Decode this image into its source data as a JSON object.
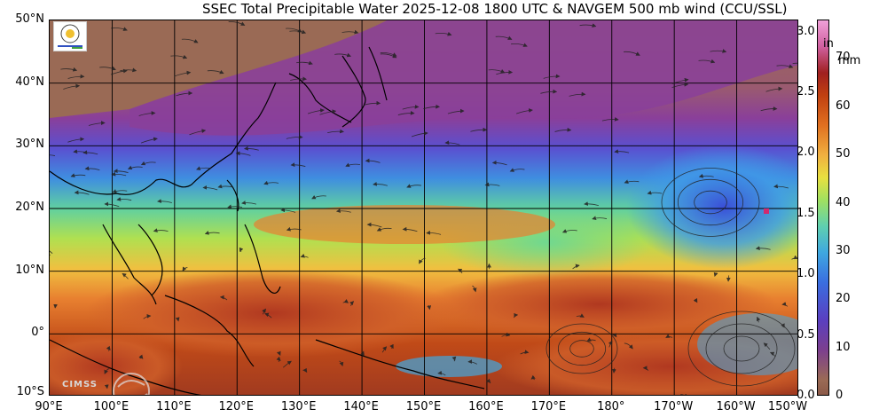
{
  "title": "SSEC Total Precipitable Water  2025-12-08 1800 UTC & NAVGEM 500 mb wind (CCU/SSL)",
  "lat_labels": [
    "50°N",
    "40°N",
    "30°N",
    "20°N",
    "10°N",
    "0°",
    "10°S"
  ],
  "lon_labels": [
    "90°E",
    "100°E",
    "110°E",
    "120°E",
    "130°E",
    "140°E",
    "150°E",
    "160°E",
    "170°E",
    "180°",
    "170°W",
    "160°W",
    "150°W"
  ],
  "colorbar": {
    "unit_in": "in",
    "unit_mm": "mm",
    "in_ticks": [
      "3.0",
      "2.5",
      "2.0",
      "1.5",
      "1.0",
      "0.5",
      "0.0"
    ],
    "mm_ticks": [
      "70",
      "60",
      "50",
      "40",
      "30",
      "20",
      "10",
      "0"
    ],
    "in_range": [
      0,
      3.1
    ],
    "mm_range": [
      0,
      78
    ]
  },
  "map": {
    "lon_range": [
      90,
      210
    ],
    "lat_range": [
      -10,
      50
    ]
  },
  "logo_text": "CIMSS",
  "colors": {
    "land_north": "#9a6a55",
    "dry": "#7c3f8f",
    "mid": "#3fa8e0",
    "moist": "#a0e060",
    "wet": "#e07020",
    "very_wet": "#a02020",
    "coast": "#000000",
    "grid": "#000000"
  }
}
